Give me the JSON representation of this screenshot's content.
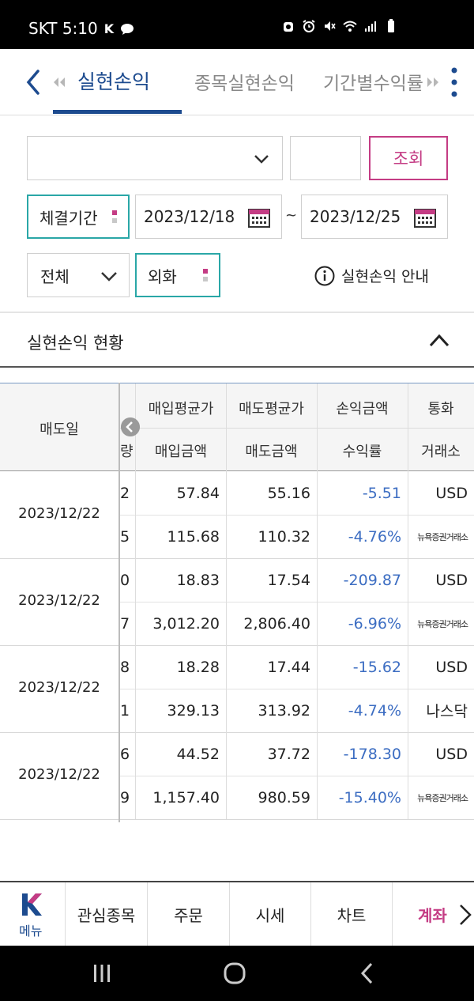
{
  "status_bar": {
    "carrier_time": "SKT 5:10",
    "carrier_badge": "K"
  },
  "header": {
    "tabs": [
      {
        "label": "실현손익",
        "active": true
      },
      {
        "label": "종목실현손익",
        "active": false
      },
      {
        "label": "기간별수익률",
        "active": false
      }
    ]
  },
  "filters": {
    "account_value": "",
    "query_label": "조회",
    "period_label": "체결기간",
    "date_start": "2023/12/18",
    "date_end": "2023/12/25",
    "date_separator": "~",
    "type_value": "전체",
    "currency_value": "외화",
    "guide_label": "실현손익 안내"
  },
  "section": {
    "title": "실현손익 현황"
  },
  "table": {
    "fixed_header": "매도일",
    "partial_header": "량",
    "headers_top": [
      "매입평균가",
      "매도평균가",
      "손익금액",
      "통화"
    ],
    "headers_bottom": [
      "매입금액",
      "매도금액",
      "수익률",
      "거래소"
    ],
    "rows": [
      {
        "date": "2023/12/22",
        "line1": {
          "qty": "2",
          "buy": "57.84",
          "sell": "55.16",
          "pnl": "-5.51",
          "cur": "USD"
        },
        "line2": {
          "qty": "5",
          "buy": "115.68",
          "sell": "110.32",
          "pnl": "-4.76%",
          "cur": "뉴욕증권거래소"
        }
      },
      {
        "date": "2023/12/22",
        "line1": {
          "qty": "0",
          "buy": "18.83",
          "sell": "17.54",
          "pnl": "-209.87",
          "cur": "USD"
        },
        "line2": {
          "qty": "7",
          "buy": "3,012.20",
          "sell": "2,806.40",
          "pnl": "-6.96%",
          "cur": "뉴욕증권거래소"
        }
      },
      {
        "date": "2023/12/22",
        "line1": {
          "qty": "8",
          "buy": "18.28",
          "sell": "17.44",
          "pnl": "-15.62",
          "cur": "USD"
        },
        "line2": {
          "qty": "1",
          "buy": "329.13",
          "sell": "313.92",
          "pnl": "-4.74%",
          "cur": "나스닥"
        }
      },
      {
        "date": "2023/12/22",
        "line1": {
          "qty": "6",
          "buy": "44.52",
          "sell": "37.72",
          "pnl": "-178.30",
          "cur": "USD"
        },
        "line2": {
          "qty": "9",
          "buy": "1,157.40",
          "sell": "980.59",
          "pnl": "-15.40%",
          "cur": "뉴욕증권거래소"
        }
      }
    ]
  },
  "bottom_nav": {
    "menu_label": "메뉴",
    "items": [
      {
        "label": "관심종목",
        "active": false
      },
      {
        "label": "주문",
        "active": false
      },
      {
        "label": "시세",
        "active": false
      },
      {
        "label": "차트",
        "active": false
      },
      {
        "label": "계좌",
        "active": true
      }
    ]
  },
  "colors": {
    "primary": "#1d4b8f",
    "accent": "#c43c84",
    "teal": "#2aa7a7",
    "negative": "#3c6dc2"
  }
}
